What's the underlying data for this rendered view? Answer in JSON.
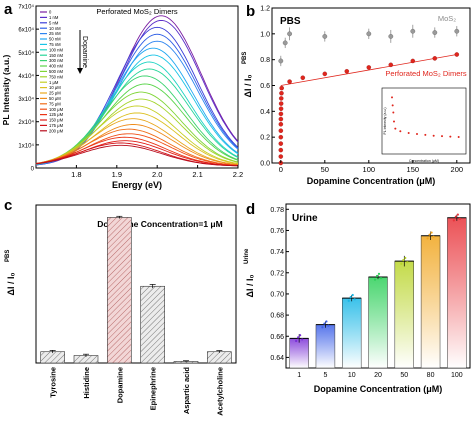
{
  "chart_data": [
    {
      "panel": "a",
      "type": "line",
      "title": "Perforated MoS₂ Dimers",
      "xlabel": "Energy (eV)",
      "ylabel": "PL Intensity (a.u.)",
      "y_exponent_unit": "x10⁴",
      "xlim": [
        1.7,
        2.2
      ],
      "ylim": [
        0,
        7
      ],
      "x_ticks": [
        "1.8",
        "1.9",
        "2.0",
        "2.1",
        "2.2"
      ],
      "y_ticks": [
        "0",
        "1x10⁴",
        "2x10⁴",
        "3x10⁴",
        "4x10⁴",
        "5x10⁴",
        "6x10⁴",
        "7x10⁴"
      ],
      "arrow_label": "Dopamine",
      "legend_placement": "top-left",
      "legend": [
        "0",
        "1 nM",
        "5 nM",
        "10 nM",
        "25 nM",
        "50 nM",
        "75 nM",
        "100 nM",
        "150 nM",
        "300 nM",
        "400 nM",
        "500 nM",
        "750 nM",
        "1 μM",
        "10 μM",
        "25 μM",
        "50 μM",
        "75 μM",
        "100 μM",
        "125 μM",
        "150 μM",
        "175 μM",
        "200 μM"
      ],
      "colors": [
        "#7b1fa2",
        "#5a2dc8",
        "#3b3fd8",
        "#2f5fe6",
        "#2d84f0",
        "#20a7f2",
        "#19c3e6",
        "#1fd3c4",
        "#27d59a",
        "#3bd36f",
        "#59d44a",
        "#7fd536",
        "#a3d42c",
        "#c5cf25",
        "#dcc021",
        "#e8a81f",
        "#ee8c1c",
        "#f06d19",
        "#ef4f17",
        "#ea3416",
        "#e01d17",
        "#d01219",
        "#b80c1c"
      ],
      "series": [
        {
          "name": "0",
          "peak_x": 2.01,
          "peak_y": 6.5
        },
        {
          "name": "1 nM",
          "peak_x": 2.01,
          "peak_y": 6.3
        },
        {
          "name": "5 nM",
          "peak_x": 2.0,
          "peak_y": 6.0
        },
        {
          "name": "10 nM",
          "peak_x": 2.0,
          "peak_y": 5.7
        },
        {
          "name": "25 nM",
          "peak_x": 2.0,
          "peak_y": 5.4
        },
        {
          "name": "50 nM",
          "peak_x": 1.99,
          "peak_y": 5.1
        },
        {
          "name": "75 nM",
          "peak_x": 1.99,
          "peak_y": 4.8
        },
        {
          "name": "100 nM",
          "peak_x": 1.98,
          "peak_y": 4.5
        },
        {
          "name": "150 nM",
          "peak_x": 1.98,
          "peak_y": 4.2
        },
        {
          "name": "300 nM",
          "peak_x": 1.97,
          "peak_y": 3.9
        },
        {
          "name": "400 nM",
          "peak_x": 1.97,
          "peak_y": 3.55
        },
        {
          "name": "500 nM",
          "peak_x": 1.96,
          "peak_y": 3.2
        },
        {
          "name": "750 nM",
          "peak_x": 1.96,
          "peak_y": 2.9
        },
        {
          "name": "1 μM",
          "peak_x": 1.95,
          "peak_y": 2.6
        },
        {
          "name": "10 μM",
          "peak_x": 1.95,
          "peak_y": 2.3
        },
        {
          "name": "25 μM",
          "peak_x": 1.94,
          "peak_y": 2.05
        },
        {
          "name": "50 μM",
          "peak_x": 1.94,
          "peak_y": 1.8
        },
        {
          "name": "75 μM",
          "peak_x": 1.93,
          "peak_y": 1.6
        },
        {
          "name": "100 μM",
          "peak_x": 1.93,
          "peak_y": 1.4
        },
        {
          "name": "125 μM",
          "peak_x": 1.92,
          "peak_y": 1.25
        },
        {
          "name": "150 μM",
          "peak_x": 1.92,
          "peak_y": 1.1
        },
        {
          "name": "175 μM",
          "peak_x": 1.91,
          "peak_y": 1.0
        },
        {
          "name": "200 μM",
          "peak_x": 1.91,
          "peak_y": 0.9
        }
      ]
    },
    {
      "panel": "b",
      "type": "scatter",
      "title": "PBS",
      "xlabel": "Dopamine Concentration (μM)",
      "ylabel": "ΔI / I₀",
      "ylabel_superscript": "PBS",
      "xlim": [
        -10,
        215
      ],
      "ylim": [
        0,
        1.2
      ],
      "x_ticks": [
        "0",
        "50",
        "100",
        "150",
        "200"
      ],
      "y_ticks": [
        "0.0",
        "0.2",
        "0.4",
        "0.6",
        "0.8",
        "1.0",
        "1.2"
      ],
      "legend_placement": "right",
      "series": [
        {
          "name": "MoS₂",
          "color": "#8c8c8c",
          "x": [
            0,
            5,
            10,
            50,
            100,
            125,
            150,
            175,
            200
          ],
          "y": [
            0.79,
            0.93,
            1.0,
            0.98,
            1.0,
            0.98,
            1.02,
            1.01,
            1.02
          ],
          "err": [
            0.04,
            0.04,
            0.05,
            0.04,
            0.04,
            0.05,
            0.05,
            0.04,
            0.04
          ]
        },
        {
          "name": "Perforated MoS₂ Dimers",
          "color": "#e0261d",
          "x": [
            0,
            0.001,
            0.005,
            0.01,
            0.025,
            0.05,
            0.075,
            0.1,
            0.15,
            0.3,
            0.4,
            0.5,
            0.75,
            1,
            10,
            25,
            50,
            75,
            100,
            125,
            150,
            175,
            200
          ],
          "y": [
            0.0,
            0.05,
            0.1,
            0.15,
            0.2,
            0.25,
            0.3,
            0.34,
            0.38,
            0.42,
            0.46,
            0.5,
            0.54,
            0.58,
            0.63,
            0.66,
            0.69,
            0.71,
            0.74,
            0.76,
            0.79,
            0.81,
            0.84
          ],
          "fit": "linear"
        }
      ],
      "inset": {
        "xlabel": "Concentration (μM)",
        "ylabel": "PL intensity (a.u.)",
        "x": [
          0,
          2,
          4,
          6,
          10,
          25,
          50,
          75,
          100,
          125,
          150,
          175,
          200
        ],
        "y": [
          5.9,
          5.0,
          4.2,
          3.2,
          2.4,
          2.1,
          1.9,
          1.8,
          1.7,
          1.6,
          1.55,
          1.5,
          1.45
        ]
      }
    },
    {
      "panel": "c",
      "type": "bar",
      "title": "Dopamine Concentration=1 μM",
      "xlabel": "",
      "ylabel": "ΔI / I₀",
      "ylabel_superscript": "PBS",
      "ylim": [
        0,
        0.7
      ],
      "categories": [
        "Tyrosine",
        "Histidine",
        "Dopamine",
        "Epinephrine",
        "Aspartic acid",
        "Acetylcholine"
      ],
      "values": [
        0.05,
        0.033,
        0.645,
        0.34,
        0.007,
        0.05
      ],
      "errors": [
        0.006,
        0.006,
        0.005,
        0.008,
        0.003,
        0.005
      ],
      "colors": [
        "#b0b0b0",
        "#b0b0b0",
        "#d88f8f",
        "#b0b0b0",
        "#b0b0b0",
        "#b0b0b0"
      ]
    },
    {
      "panel": "d",
      "type": "bar",
      "title": "Urine",
      "xlabel": "Dopamine Concentration (μM)",
      "ylabel": "ΔI / I₀",
      "ylabel_superscript": "Urine",
      "ylim": [
        0.63,
        0.785
      ],
      "y_ticks": [
        "0.64",
        "0.66",
        "0.68",
        "0.70",
        "0.72",
        "0.74",
        "0.76",
        "0.78"
      ],
      "categories": [
        "1",
        "5",
        "10",
        "20",
        "50",
        "80",
        "100"
      ],
      "values": [
        0.658,
        0.671,
        0.696,
        0.716,
        0.731,
        0.755,
        0.772
      ],
      "errors": [
        0.004,
        0.003,
        0.003,
        0.002,
        0.005,
        0.004,
        0.003
      ],
      "colors": [
        "#7a2fd6",
        "#3b5fe8",
        "#19b7e6",
        "#2ccf58",
        "#b9d42a",
        "#f0a51e",
        "#e8343a"
      ]
    }
  ]
}
